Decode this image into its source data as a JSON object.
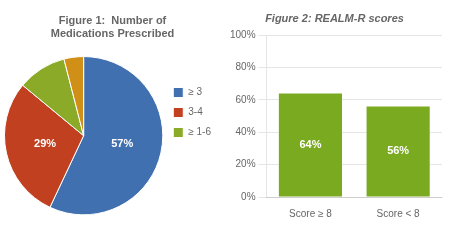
{
  "chart_data": [
    {
      "type": "pie",
      "title": "Figure 1:  Number of\nMedications Prescribed",
      "categories": [
        "≥ 3",
        "3-4",
        "≥ 1-6",
        null
      ],
      "values": [
        57,
        29,
        10,
        4
      ],
      "colors": [
        "#4070b0",
        "#c04020",
        "#8aaa28",
        "#d09018"
      ],
      "value_labels": [
        "57%",
        "29%",
        null,
        null
      ],
      "data_labels": true,
      "legend": "right"
    },
    {
      "type": "bar",
      "title": "Figure 2: REALM-R scores",
      "categories": [
        "Score ≥ 8",
        "Score < 8"
      ],
      "values": [
        64,
        56
      ],
      "color": "#7aaa20",
      "value_labels": [
        "64%",
        "56%"
      ],
      "data_labels": true,
      "ylim": [
        0,
        100
      ],
      "yticks": [
        {
          "value": 0,
          "label": "0%"
        },
        {
          "value": 20,
          "label": "20%"
        },
        {
          "value": 40,
          "label": "40%"
        },
        {
          "value": 60,
          "label": "60%"
        },
        {
          "value": 80,
          "label": "80%"
        },
        {
          "value": 100,
          "label": "100%"
        }
      ],
      "grid": true
    }
  ]
}
